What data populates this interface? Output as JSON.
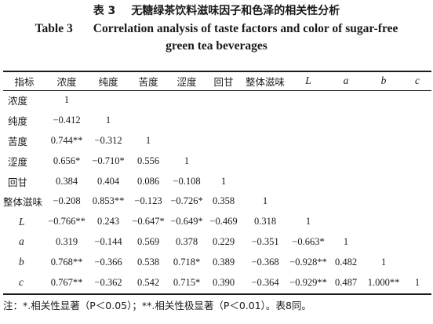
{
  "caption": {
    "zh_number": "表 3",
    "zh_title": "无糖绿茶饮料滋味因子和色泽的相关性分析",
    "en_number": "Table 3",
    "en_title_line1": "Correlation analysis of taste factors and color of sugar-free",
    "en_title_line2": "green tea beverages"
  },
  "table": {
    "corner": "指标",
    "columns": [
      {
        "label": "浓度",
        "italic": false
      },
      {
        "label": "纯度",
        "italic": false
      },
      {
        "label": "苦度",
        "italic": false
      },
      {
        "label": "涩度",
        "italic": false
      },
      {
        "label": "回甘",
        "italic": false
      },
      {
        "label": "整体滋味",
        "italic": false
      },
      {
        "label": "L",
        "italic": true
      },
      {
        "label": "a",
        "italic": true
      },
      {
        "label": "b",
        "italic": true
      },
      {
        "label": "c",
        "italic": true
      }
    ],
    "rows": [
      {
        "label": "浓度",
        "italic": false,
        "cells": [
          "1"
        ]
      },
      {
        "label": "纯度",
        "italic": false,
        "cells": [
          "−0.412",
          "1"
        ]
      },
      {
        "label": "苦度",
        "italic": false,
        "cells": [
          "0.744**",
          "−0.312",
          "1"
        ]
      },
      {
        "label": "涩度",
        "italic": false,
        "cells": [
          "0.656*",
          "−0.710*",
          "0.556",
          "1"
        ]
      },
      {
        "label": "回甘",
        "italic": false,
        "cells": [
          "0.384",
          "0.404",
          "0.086",
          "−0.108",
          "1"
        ]
      },
      {
        "label": "整体滋味",
        "italic": false,
        "cells": [
          "−0.208",
          "0.853**",
          "−0.123",
          "−0.726*",
          "0.358",
          "1"
        ]
      },
      {
        "label": "L",
        "italic": true,
        "cells": [
          "−0.766**",
          "0.243",
          "−0.647*",
          "−0.649*",
          "−0.469",
          "0.318",
          "1"
        ]
      },
      {
        "label": "a",
        "italic": true,
        "cells": [
          "0.319",
          "−0.144",
          "0.569",
          "0.378",
          "0.229",
          "−0.351",
          "−0.663*",
          "1"
        ]
      },
      {
        "label": "b",
        "italic": true,
        "cells": [
          "0.768**",
          "−0.366",
          "0.538",
          "0.718*",
          "0.389",
          "−0.368",
          "−0.928**",
          "0.482",
          "1"
        ]
      },
      {
        "label": "c",
        "italic": true,
        "cells": [
          "0.767**",
          "−0.362",
          "0.542",
          "0.715*",
          "0.390",
          "−0.364",
          "−0.929**",
          "0.487",
          "1.000**",
          "1"
        ]
      }
    ]
  },
  "note": "注：*.相关性显著（P＜0.05）；**.相关性极显著（P＜0.01）。表8同。"
}
